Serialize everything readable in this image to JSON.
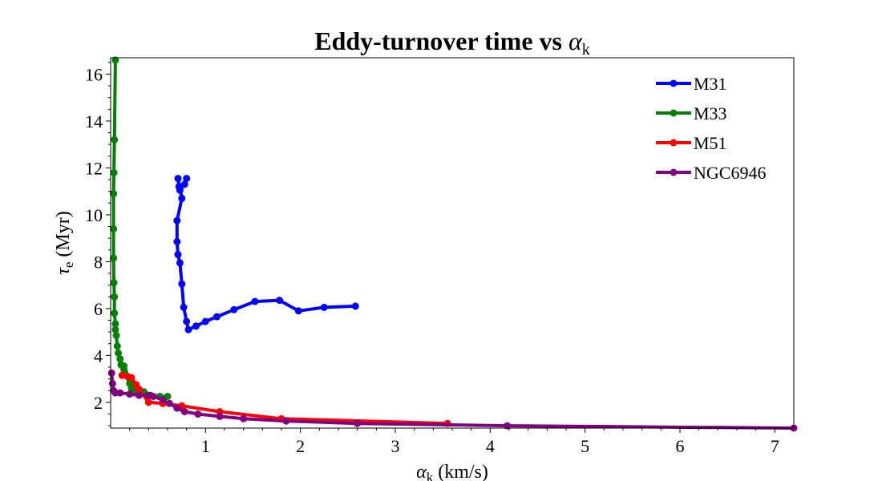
{
  "chart_data": {
    "type": "line",
    "title": "Eddy-turnover time vs αk",
    "title_parts": {
      "main": "Eddy-turnover time vs ",
      "symbol": "α",
      "subscript": "k"
    },
    "xlabel": "αk (km/s)",
    "xlabel_parts": {
      "symbol": "α",
      "subscript": "k",
      "unit": " (km/s)"
    },
    "ylabel": "τe (Myr)",
    "ylabel_parts": {
      "symbol": "τ",
      "subscript": "e",
      "unit": " (Myr)"
    },
    "xlim": [
      0,
      7.2
    ],
    "ylim": [
      0.9,
      16.7
    ],
    "xticks": [
      1,
      2,
      3,
      4,
      5,
      6,
      7
    ],
    "yticks": [
      2,
      4,
      6,
      8,
      10,
      12,
      14,
      16
    ],
    "grid": false,
    "legend_position": "top-right",
    "series": [
      {
        "name": "M31",
        "color": "#0000ff",
        "points": [
          [
            0.8,
            11.55
          ],
          [
            0.78,
            11.3
          ],
          [
            0.73,
            11.05
          ],
          [
            0.71,
            11.55
          ],
          [
            0.72,
            11.2
          ],
          [
            0.73,
            11.2
          ],
          [
            0.75,
            10.7
          ],
          [
            0.7,
            9.75
          ],
          [
            0.7,
            8.85
          ],
          [
            0.71,
            8.3
          ],
          [
            0.73,
            7.95
          ],
          [
            0.75,
            7.05
          ],
          [
            0.77,
            6.05
          ],
          [
            0.8,
            5.45
          ],
          [
            0.82,
            5.1
          ],
          [
            0.9,
            5.25
          ],
          [
            1.0,
            5.45
          ],
          [
            1.12,
            5.65
          ],
          [
            1.3,
            5.95
          ],
          [
            1.52,
            6.3
          ],
          [
            1.78,
            6.35
          ],
          [
            1.98,
            5.9
          ],
          [
            2.25,
            6.05
          ],
          [
            2.58,
            6.1
          ]
        ]
      },
      {
        "name": "M33",
        "color": "#008000",
        "points": [
          [
            0.05,
            16.6
          ],
          [
            0.04,
            13.2
          ],
          [
            0.035,
            11.8
          ],
          [
            0.03,
            10.9
          ],
          [
            0.03,
            9.4
          ],
          [
            0.03,
            8.15
          ],
          [
            0.035,
            7.1
          ],
          [
            0.04,
            6.5
          ],
          [
            0.04,
            5.8
          ],
          [
            0.05,
            5.35
          ],
          [
            0.05,
            5.1
          ],
          [
            0.06,
            4.85
          ],
          [
            0.07,
            4.4
          ],
          [
            0.08,
            4.1
          ],
          [
            0.1,
            3.85
          ],
          [
            0.11,
            3.6
          ],
          [
            0.14,
            3.4
          ],
          [
            0.14,
            3.55
          ],
          [
            0.15,
            3.25
          ],
          [
            0.2,
            2.8
          ],
          [
            0.22,
            2.6
          ],
          [
            0.26,
            2.45
          ],
          [
            0.3,
            2.35
          ],
          [
            0.35,
            2.45
          ],
          [
            0.42,
            2.3
          ],
          [
            0.52,
            2.25
          ],
          [
            0.6,
            2.25
          ]
        ]
      },
      {
        "name": "M51",
        "color": "#ff0000",
        "points": [
          [
            0.12,
            3.15
          ],
          [
            0.18,
            3.1
          ],
          [
            0.22,
            3.05
          ],
          [
            0.27,
            2.75
          ],
          [
            0.3,
            2.55
          ],
          [
            0.4,
            2.0
          ],
          [
            0.55,
            1.95
          ],
          [
            0.75,
            1.85
          ],
          [
            1.15,
            1.6
          ],
          [
            1.8,
            1.3
          ],
          [
            3.55,
            1.1
          ]
        ]
      },
      {
        "name": "NGC6946",
        "color": "#800080",
        "points": [
          [
            0.01,
            3.25
          ],
          [
            0.02,
            2.8
          ],
          [
            0.03,
            2.5
          ],
          [
            0.05,
            2.4
          ],
          [
            0.1,
            2.4
          ],
          [
            0.2,
            2.35
          ],
          [
            0.3,
            2.3
          ],
          [
            0.4,
            2.3
          ],
          [
            0.45,
            2.25
          ],
          [
            0.55,
            2.1
          ],
          [
            0.62,
            1.95
          ],
          [
            0.7,
            1.75
          ],
          [
            0.78,
            1.6
          ],
          [
            0.92,
            1.5
          ],
          [
            1.15,
            1.4
          ],
          [
            1.4,
            1.3
          ],
          [
            1.85,
            1.2
          ],
          [
            2.6,
            1.1
          ],
          [
            4.18,
            1.0
          ],
          [
            7.2,
            0.9
          ]
        ]
      }
    ]
  }
}
